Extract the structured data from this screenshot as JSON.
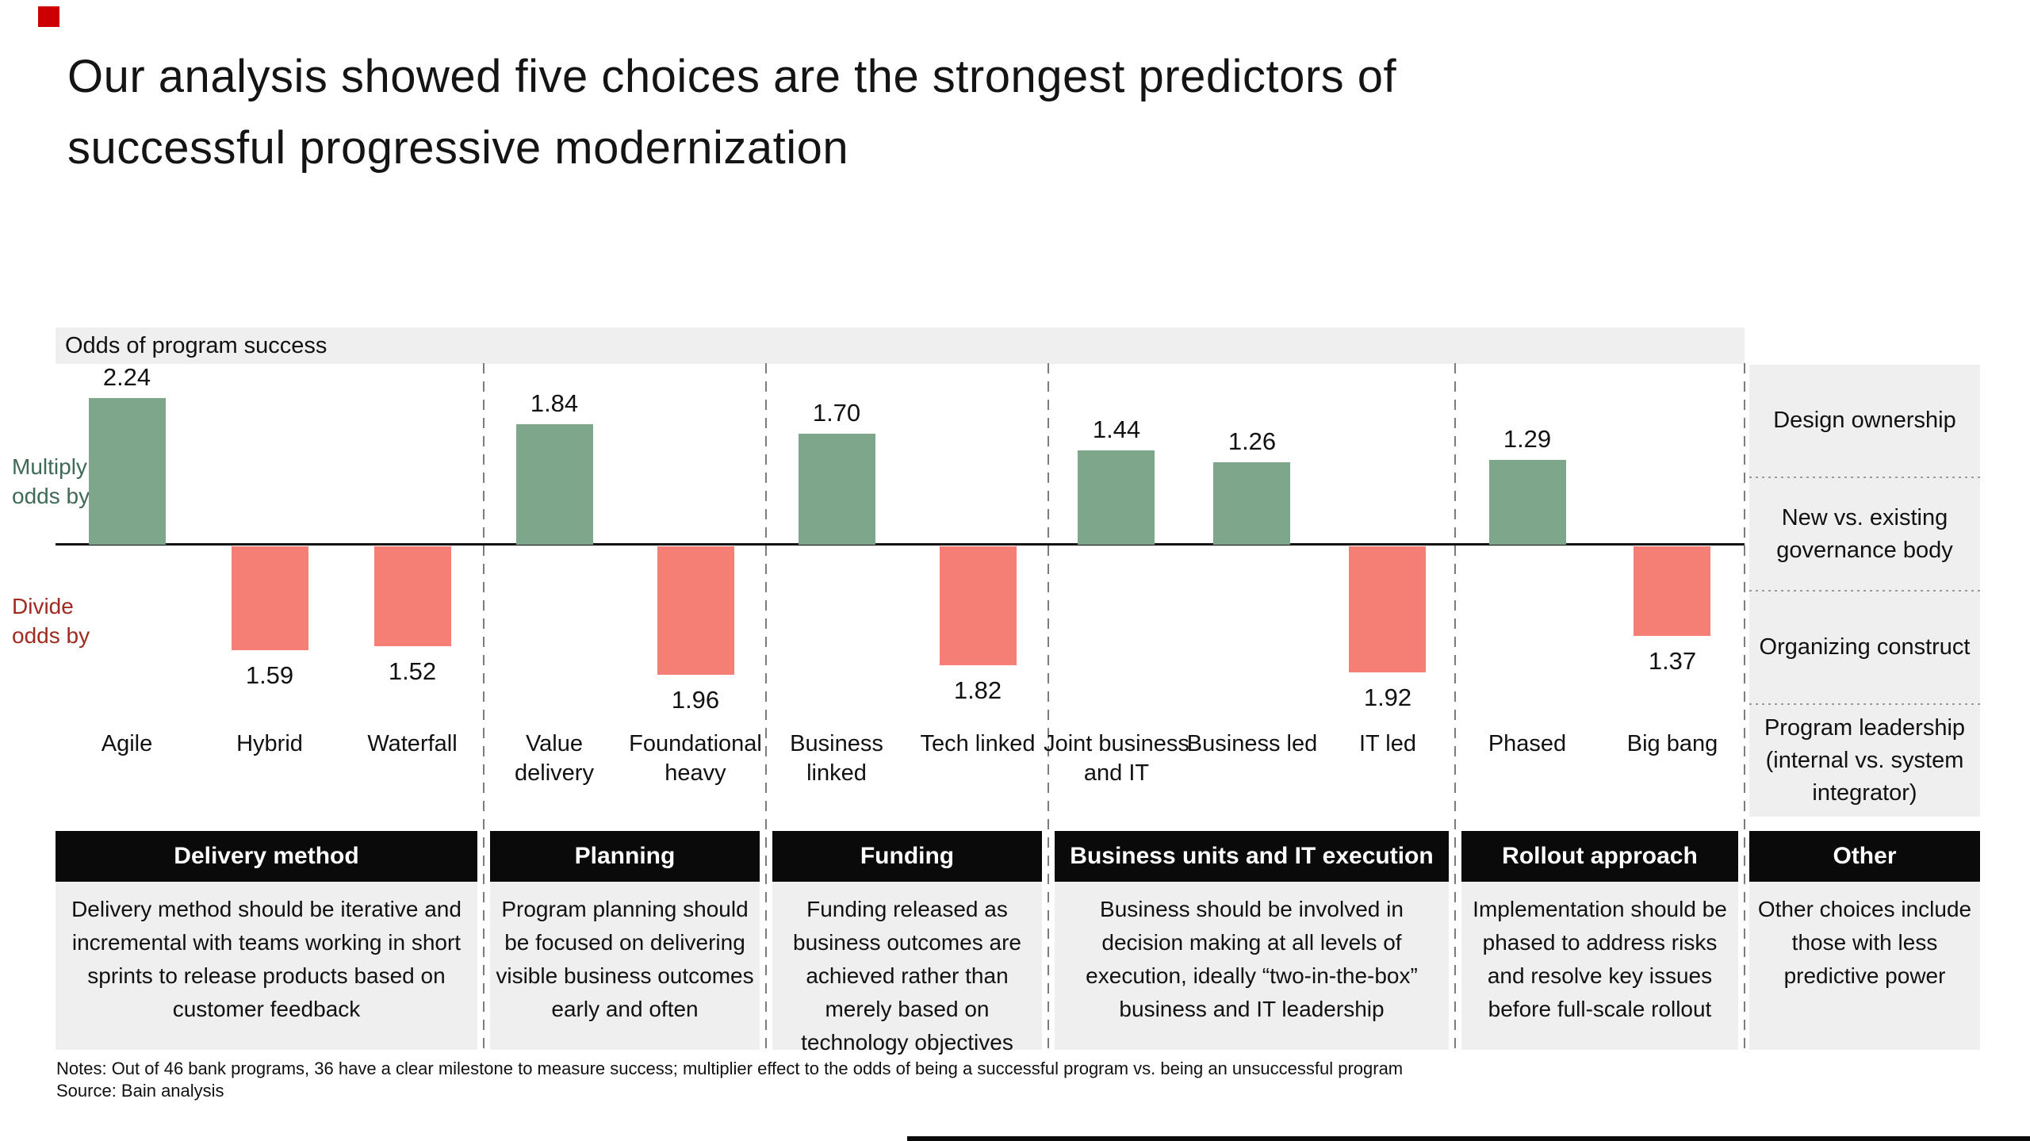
{
  "slide": {
    "title_lines": [
      "Our analysis showed five choices are the strongest predictors of",
      "successful progressive modernization"
    ],
    "notes": "Notes: Out of 46 bank programs, 36 have a clear milestone to measure success; multiplier effect to the odds of being a successful program vs. being an unsuccessful program",
    "source": "Source: Bain analysis",
    "brand_mark_color": "#cc0000"
  },
  "chart_data": {
    "type": "bar",
    "title": "Odds of program success",
    "ylabel_positive": "Multiply\nodds by",
    "ylabel_negative": "Divide\nodds by",
    "value_scale_note": "bar length = multiplier value; bars above baseline multiply odds, bars below divide odds",
    "colors": {
      "multiply_bar": "#7da68b",
      "divide_bar": "#f57e75",
      "multiply_label_text": "#3f6a55",
      "divide_label_text": "#9f2b20",
      "header_bg": "#0a0a0a",
      "panel_bg": "#efefef"
    },
    "sections": [
      {
        "header": "Delivery method",
        "description": "Delivery method should be iterative and incremental with teams working in short sprints to release products based on customer feedback",
        "bars": [
          {
            "label": "Agile",
            "value": 2.24,
            "value_label": "2.24",
            "direction": "multiply"
          },
          {
            "label": "Hybrid",
            "value": 1.59,
            "value_label": "1.59",
            "direction": "divide"
          },
          {
            "label": "Waterfall",
            "value": 1.52,
            "value_label": "1.52",
            "direction": "divide"
          }
        ]
      },
      {
        "header": "Planning",
        "description": "Program planning should be focused on delivering visible business outcomes early and often",
        "bars": [
          {
            "label": "Value\ndelivery",
            "value": 1.84,
            "value_label": "1.84",
            "direction": "multiply"
          },
          {
            "label": "Foundational\nheavy",
            "value": 1.96,
            "value_label": "1.96",
            "direction": "divide"
          }
        ]
      },
      {
        "header": "Funding",
        "description": "Funding released as business outcomes are achieved rather than merely based on technology objectives",
        "bars": [
          {
            "label": "Business\nlinked",
            "value": 1.7,
            "value_label": "1.70",
            "direction": "multiply"
          },
          {
            "label": "Tech linked",
            "value": 1.82,
            "value_label": "1.82",
            "direction": "divide"
          }
        ]
      },
      {
        "header": "Business units and IT execution",
        "description": "Business should be involved in decision making at all levels of execution, ideally “two-in-the-box” business and IT leadership",
        "bars": [
          {
            "label": "Joint business\nand IT",
            "value": 1.44,
            "value_label": "1.44",
            "direction": "multiply"
          },
          {
            "label": "Business led",
            "value": 1.26,
            "value_label": "1.26",
            "direction": "multiply"
          },
          {
            "label": "IT led",
            "value": 1.92,
            "value_label": "1.92",
            "direction": "divide"
          }
        ]
      },
      {
        "header": "Rollout approach",
        "description": "Implementation should be phased to address risks and resolve key issues before full-scale rollout",
        "bars": [
          {
            "label": "Phased",
            "value": 1.29,
            "value_label": "1.29",
            "direction": "multiply"
          },
          {
            "label": "Big bang",
            "value": 1.37,
            "value_label": "1.37",
            "direction": "divide"
          }
        ]
      }
    ],
    "other_section": {
      "header": "Other",
      "description": "Other choices include those with less predictive power",
      "items": [
        "Design ownership",
        "New vs. existing governance body",
        "Organizing construct",
        "Program leadership (internal vs. system integrator)"
      ]
    },
    "layout": {
      "legend": "none",
      "grid": "off",
      "baseline": "single horizontal axis, sections separated by vertical dashed lines"
    }
  }
}
